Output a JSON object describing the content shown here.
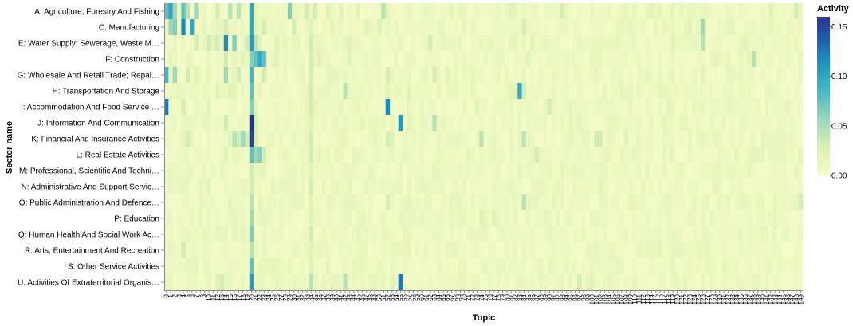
{
  "chart_data": {
    "type": "heatmap",
    "title": "",
    "xlabel": "Topic",
    "ylabel": "Sector name",
    "legend_title": "Activity",
    "legend_ticks": [
      "0.15",
      "0.10",
      "0.05",
      "0.00"
    ],
    "legend_values": [
      0.15,
      0.1,
      0.05,
      0.0
    ],
    "color_domain": [
      0,
      0.16
    ],
    "color_range": [
      "#f7fcc9",
      "#dbf0b4",
      "#97d6b9",
      "#41b6c4",
      "#1d91c0",
      "#225ea8",
      "#253494"
    ],
    "sectors": [
      "A: Agriculture, Forestry And Fishing",
      "C: Manufacturing",
      "E: Water Supply; Sewerage, Waste M…",
      "F: Construction",
      "G: Wholesale And Retail Trade; Repai…",
      "H: Transportation And Storage",
      "I: Accommodation And Food Service …",
      "J: Information And Communication",
      "K: Financial And Insurance Activities",
      "L: Real Estate Activities",
      "M: Professional, Scientific And Techni…",
      "N: Administrative And Support Servic…",
      "O: Public Administration And Defence…",
      "P: Education",
      "Q: Human Health And Social Work Ac…",
      "R: Arts, Entertainment And Recreation",
      "S: Other Service Activities",
      "U: Activities Of Extraterritorial Organis…"
    ],
    "topics_count": 150,
    "baseline": 0.008,
    "highlights": [
      [
        0,
        0,
        0.07
      ],
      [
        0,
        1,
        0.09
      ],
      [
        0,
        2,
        0.05
      ],
      [
        0,
        4,
        0.07
      ],
      [
        0,
        5,
        0.04
      ],
      [
        0,
        7,
        0.05
      ],
      [
        0,
        12,
        0.03
      ],
      [
        0,
        15,
        0.04
      ],
      [
        0,
        17,
        0.04
      ],
      [
        0,
        20,
        0.09
      ],
      [
        0,
        21,
        0.02
      ],
      [
        0,
        29,
        0.06
      ],
      [
        0,
        33,
        0.03
      ],
      [
        0,
        35,
        0.03
      ],
      [
        0,
        38,
        0.02
      ],
      [
        0,
        41,
        0.02
      ],
      [
        0,
        45,
        0.02
      ],
      [
        0,
        51,
        0.04
      ],
      [
        0,
        81,
        0.02
      ],
      [
        0,
        93,
        0.03
      ],
      [
        0,
        114,
        0.02
      ],
      [
        0,
        119,
        0.02
      ],
      [
        0,
        142,
        0.02
      ],
      [
        0,
        148,
        0.03
      ],
      [
        1,
        1,
        0.05
      ],
      [
        1,
        2,
        0.06
      ],
      [
        1,
        4,
        0.11
      ],
      [
        1,
        6,
        0.09
      ],
      [
        1,
        14,
        0.03
      ],
      [
        1,
        20,
        0.09
      ],
      [
        1,
        21,
        0.02
      ],
      [
        1,
        23,
        0.03
      ],
      [
        1,
        30,
        0.03
      ],
      [
        1,
        34,
        0.02
      ],
      [
        1,
        47,
        0.02
      ],
      [
        1,
        50,
        0.02
      ],
      [
        1,
        84,
        0.03
      ],
      [
        1,
        123,
        0.02
      ],
      [
        1,
        126,
        0.05
      ],
      [
        2,
        7,
        0.03
      ],
      [
        2,
        10,
        0.03
      ],
      [
        2,
        12,
        0.03
      ],
      [
        2,
        14,
        0.11
      ],
      [
        2,
        16,
        0.06
      ],
      [
        2,
        19,
        0.03
      ],
      [
        2,
        20,
        0.1
      ],
      [
        2,
        21,
        0.04
      ],
      [
        2,
        22,
        0.02
      ],
      [
        2,
        26,
        0.02
      ],
      [
        2,
        34,
        0.03
      ],
      [
        2,
        43,
        0.02
      ],
      [
        2,
        62,
        0.03
      ],
      [
        2,
        86,
        0.02
      ],
      [
        2,
        119,
        0.02
      ],
      [
        2,
        126,
        0.04
      ],
      [
        2,
        136,
        0.02
      ],
      [
        3,
        14,
        0.03
      ],
      [
        3,
        18,
        0.02
      ],
      [
        3,
        20,
        0.06
      ],
      [
        3,
        21,
        0.07
      ],
      [
        3,
        22,
        0.09
      ],
      [
        3,
        23,
        0.07
      ],
      [
        3,
        26,
        0.02
      ],
      [
        3,
        34,
        0.03
      ],
      [
        3,
        36,
        0.02
      ],
      [
        3,
        43,
        0.02
      ],
      [
        3,
        85,
        0.02
      ],
      [
        3,
        138,
        0.04
      ],
      [
        4,
        0,
        0.08
      ],
      [
        4,
        2,
        0.05
      ],
      [
        4,
        5,
        0.03
      ],
      [
        4,
        7,
        0.02
      ],
      [
        4,
        14,
        0.05
      ],
      [
        4,
        17,
        0.03
      ],
      [
        4,
        20,
        0.08
      ],
      [
        4,
        23,
        0.03
      ],
      [
        4,
        34,
        0.03
      ],
      [
        4,
        52,
        0.03
      ],
      [
        4,
        63,
        0.03
      ],
      [
        4,
        66,
        0.02
      ],
      [
        4,
        126,
        0.02
      ],
      [
        5,
        12,
        0.02
      ],
      [
        5,
        15,
        0.02
      ],
      [
        5,
        16,
        0.02
      ],
      [
        5,
        20,
        0.07
      ],
      [
        5,
        34,
        0.03
      ],
      [
        5,
        42,
        0.04
      ],
      [
        5,
        52,
        0.02
      ],
      [
        5,
        57,
        0.02
      ],
      [
        5,
        81,
        0.02
      ],
      [
        5,
        82,
        0.02
      ],
      [
        5,
        83,
        0.09
      ],
      [
        5,
        84,
        0.03
      ],
      [
        6,
        0,
        0.12
      ],
      [
        6,
        4,
        0.03
      ],
      [
        6,
        10,
        0.02
      ],
      [
        6,
        20,
        0.06
      ],
      [
        6,
        21,
        0.02
      ],
      [
        6,
        34,
        0.03
      ],
      [
        6,
        52,
        0.11
      ],
      [
        6,
        73,
        0.02
      ],
      [
        6,
        90,
        0.03
      ],
      [
        7,
        14,
        0.03
      ],
      [
        7,
        20,
        0.16
      ],
      [
        7,
        21,
        0.03
      ],
      [
        7,
        34,
        0.02
      ],
      [
        7,
        55,
        0.1
      ],
      [
        7,
        57,
        0.02
      ],
      [
        7,
        63,
        0.04
      ],
      [
        8,
        5,
        0.03
      ],
      [
        8,
        15,
        0.02
      ],
      [
        8,
        16,
        0.04
      ],
      [
        8,
        17,
        0.03
      ],
      [
        8,
        18,
        0.05
      ],
      [
        8,
        19,
        0.03
      ],
      [
        8,
        20,
        0.15
      ],
      [
        8,
        21,
        0.03
      ],
      [
        8,
        34,
        0.03
      ],
      [
        8,
        52,
        0.03
      ],
      [
        8,
        53,
        0.02
      ],
      [
        8,
        74,
        0.04
      ],
      [
        8,
        84,
        0.04
      ],
      [
        8,
        101,
        0.03
      ],
      [
        8,
        102,
        0.03
      ],
      [
        8,
        108,
        0.02
      ],
      [
        9,
        14,
        0.02
      ],
      [
        9,
        20,
        0.07
      ],
      [
        9,
        21,
        0.05
      ],
      [
        9,
        22,
        0.06
      ],
      [
        9,
        23,
        0.03
      ],
      [
        9,
        34,
        0.03
      ],
      [
        9,
        87,
        0.03
      ],
      [
        10,
        20,
        0.03
      ],
      [
        10,
        34,
        0.02
      ],
      [
        11,
        20,
        0.03
      ],
      [
        11,
        34,
        0.03
      ],
      [
        11,
        10,
        0.02
      ],
      [
        12,
        20,
        0.04
      ],
      [
        12,
        34,
        0.02
      ],
      [
        12,
        52,
        0.03
      ],
      [
        12,
        84,
        0.04
      ],
      [
        12,
        149,
        0.03
      ],
      [
        13,
        20,
        0.05
      ],
      [
        13,
        34,
        0.02
      ],
      [
        13,
        74,
        0.02
      ],
      [
        13,
        77,
        0.02
      ],
      [
        14,
        20,
        0.06
      ],
      [
        14,
        34,
        0.03
      ],
      [
        15,
        4,
        0.03
      ],
      [
        15,
        20,
        0.04
      ],
      [
        15,
        34,
        0.02
      ],
      [
        16,
        20,
        0.07
      ],
      [
        16,
        34,
        0.02
      ],
      [
        17,
        12,
        0.02
      ],
      [
        17,
        13,
        0.03
      ],
      [
        17,
        20,
        0.1
      ],
      [
        17,
        34,
        0.04
      ],
      [
        17,
        42,
        0.04
      ],
      [
        17,
        53,
        0.02
      ],
      [
        17,
        55,
        0.12
      ],
      [
        17,
        97,
        0.03
      ],
      [
        17,
        100,
        0.02
      ]
    ]
  }
}
